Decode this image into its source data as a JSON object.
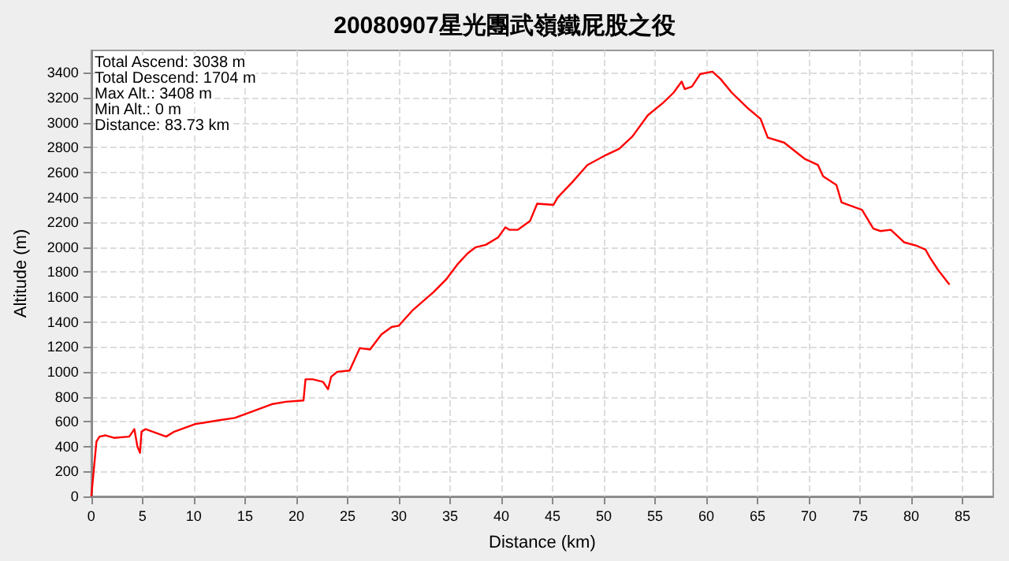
{
  "chart_data": {
    "type": "line",
    "title": "20080907星光團武嶺鐵屁股之役",
    "xlabel": "Distance (km)",
    "ylabel": "Altitude (m)",
    "annotations": [
      "Total Ascend: 3038 m",
      "Total Descend: 1704 m",
      "Max Alt.: 3408 m",
      "Min Alt.: 0 m",
      "Distance: 83.73 km"
    ],
    "xlim": [
      0,
      88
    ],
    "xticks": [
      0,
      5,
      10,
      15,
      20,
      25,
      30,
      35,
      40,
      45,
      50,
      55,
      60,
      65,
      70,
      75,
      80,
      85
    ],
    "ylim": [
      0,
      3580
    ],
    "yticks": [
      0,
      200,
      400,
      600,
      800,
      1000,
      1200,
      1400,
      1600,
      1800,
      2000,
      2200,
      2400,
      2600,
      2800,
      3000,
      3200,
      3400
    ],
    "grid": true,
    "marker": "none",
    "line_style": "solid",
    "series": [
      {
        "color": "#ff0000",
        "x": [
          0,
          0.5,
          0.8,
          1.4,
          2.2,
          3.7,
          4.2,
          4.5,
          4.75,
          4.9,
          5.3,
          7.3,
          8.1,
          10.1,
          12.4,
          14,
          15,
          17.6,
          19,
          20.7,
          20.9,
          21.6,
          22.6,
          23.1,
          23.4,
          24,
          25.2,
          26.2,
          27.2,
          28.3,
          29.3,
          30,
          31.3,
          33.4,
          34.6,
          35.7,
          36.7,
          37.5,
          38.5,
          39.7,
          40.4,
          40.8,
          41.6,
          42.8,
          43.5,
          45.1,
          45.5,
          46.9,
          48.4,
          50.2,
          51.5,
          52.8,
          54.3,
          55.8,
          56.8,
          57.6,
          57.9,
          58.6,
          59.4,
          60.6,
          61.4,
          62.5,
          64,
          65.3,
          66,
          67.6,
          69.6,
          70.9,
          71.4,
          72.7,
          73.2,
          75.2,
          76.3,
          77,
          78,
          79.3,
          80.6,
          81.4,
          81.8,
          82.6,
          83.73
        ],
        "values": [
          0,
          440,
          480,
          490,
          470,
          480,
          540,
          400,
          350,
          520,
          540,
          480,
          520,
          580,
          610,
          630,
          660,
          740,
          760,
          770,
          940,
          940,
          920,
          860,
          960,
          1000,
          1010,
          1190,
          1180,
          1300,
          1360,
          1370,
          1490,
          1640,
          1740,
          1860,
          1950,
          2000,
          2020,
          2080,
          2160,
          2140,
          2140,
          2210,
          2350,
          2340,
          2400,
          2520,
          2660,
          2740,
          2790,
          2890,
          3060,
          3160,
          3240,
          3330,
          3270,
          3290,
          3390,
          3410,
          3350,
          3240,
          3120,
          3030,
          2880,
          2840,
          2710,
          2660,
          2570,
          2500,
          2360,
          2300,
          2150,
          2130,
          2140,
          2040,
          2010,
          1980,
          1920,
          1820,
          1700
        ]
      }
    ]
  }
}
